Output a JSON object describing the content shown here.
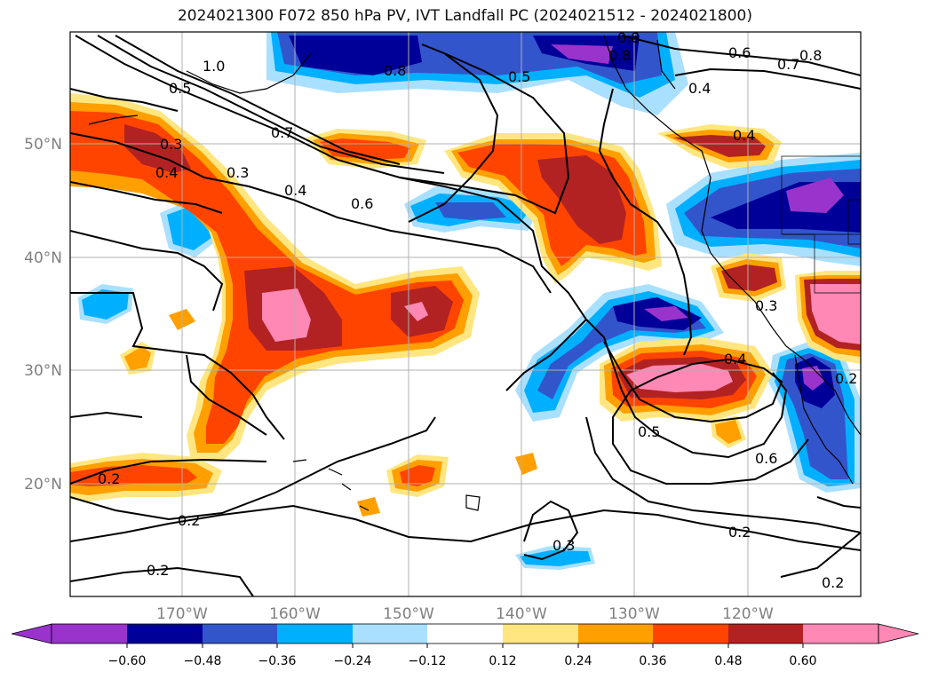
{
  "title": "2024021300 F072 850 hPa PV, IVT Landfall PC (2024021512 - 2024021800)",
  "map": {
    "lon_labels": [
      "170°W",
      "160°W",
      "150°W",
      "140°W",
      "130°W",
      "120°W"
    ],
    "lat_labels": [
      "50°N",
      "40°N",
      "30°N",
      "20°N"
    ],
    "label_color": "#808080",
    "contour_labels": [
      "1.0",
      "0.5",
      "0.3",
      "0.4",
      "0.3",
      "0.7",
      "0.4",
      "0.6",
      "0.8",
      "0.5",
      "0.8",
      "0.8",
      "0.4",
      "0.6",
      "0.7",
      "0.8",
      "0.4",
      "0.3",
      "0.4",
      "0.5",
      "0.6",
      "0.2",
      "0.2",
      "0.2",
      "0.3",
      "0.2",
      "0.2",
      "0.2"
    ]
  },
  "colorbar": {
    "tick_labels": [
      "−0.60",
      "−0.48",
      "−0.36",
      "−0.24",
      "−0.12",
      "0.12",
      "0.24",
      "0.36",
      "0.48",
      "0.60"
    ],
    "colors": [
      "#9933cc",
      "#000099",
      "#3355cc",
      "#00b0ff",
      "#aae0ff",
      "#ffffff",
      "#ffe680",
      "#ff9f00",
      "#ff4400",
      "#b22222",
      "#ff88b4"
    ]
  }
}
